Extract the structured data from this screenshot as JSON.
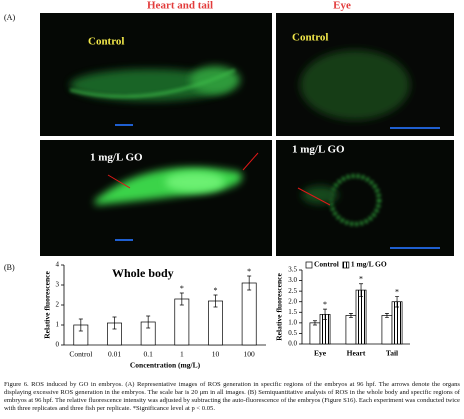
{
  "panel_a": {
    "label": "(A)",
    "columns": [
      "Heart and tail",
      "Eye"
    ],
    "rows": [
      [
        "Control",
        "Control"
      ],
      [
        "1 mg/L GO",
        "1 mg/L GO"
      ]
    ]
  },
  "panel_b": {
    "label": "(B)"
  },
  "chart_data": [
    {
      "type": "bar",
      "title": "Whole body",
      "x_label": "Concentration (mg/L)",
      "y_label": "Relative fluorescence",
      "categories": [
        "Control",
        "0.01",
        "0.1",
        "1",
        "10",
        "100"
      ],
      "values": [
        1.0,
        1.1,
        1.15,
        2.3,
        2.2,
        3.1
      ],
      "errors": [
        0.3,
        0.3,
        0.3,
        0.3,
        0.3,
        0.35
      ],
      "significance": [
        null,
        null,
        null,
        "*",
        "*",
        "*"
      ],
      "color": "#ffffff",
      "ylim": [
        0,
        4
      ],
      "yticks": [
        0,
        1,
        2,
        3,
        4
      ]
    },
    {
      "type": "bar",
      "y_label": "Relative fluorescence",
      "categories": [
        "Eye",
        "Heart",
        "Tail"
      ],
      "series": [
        {
          "name": "Control",
          "color": "#ffffff",
          "hatch": false,
          "values": [
            1.0,
            1.35,
            1.35
          ],
          "errors": [
            0.1,
            0.1,
            0.1
          ]
        },
        {
          "name": "1 mg/L GO",
          "color": "#ffffff",
          "hatch": true,
          "values": [
            1.4,
            2.55,
            2.0
          ],
          "errors": [
            0.25,
            0.3,
            0.25
          ]
        }
      ],
      "significance": [
        "*",
        "*",
        "*"
      ],
      "legend": "top",
      "ylim": [
        0,
        3.5
      ],
      "yticks": [
        {
          "value": 0,
          "label": "0.0"
        },
        0.5,
        {
          "value": 1,
          "label": "1.0"
        },
        1.5,
        {
          "value": 2,
          "label": "2.0"
        },
        2.5,
        {
          "value": 3,
          "label": "3.0"
        },
        3.5
      ]
    }
  ],
  "caption": "Figure 6.  ROS induced by GO in embryos. (A) Representative images of ROS generation in specific regions of the embryos at 96 hpf. The arrows denote the organs displaying excessive ROS generation in the embryos. The scale bar is 20 μm in all images. (B) Semiquantitative analysis of ROS in the whole body and specific regions of embryos at 96 hpf. The relative fluorescence intensity was adjusted by subtracting the auto-fluorescence of the embryos (Figure S16). Each experiment was conducted twice with three replicates and three fish per replicate. *Significance level at p < 0.05."
}
